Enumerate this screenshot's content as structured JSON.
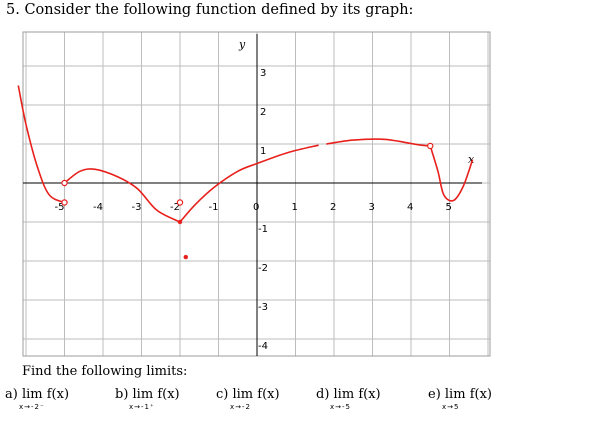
{
  "question": "5. Consider the following function defined by its graph:",
  "instruction": "Find the following limits:",
  "limits": [
    {
      "label": "a) lim",
      "fn": "f(x)",
      "approach": "x→-2⁻"
    },
    {
      "label": "b) lim",
      "fn": "f(x)",
      "approach": "x→-1⁺"
    },
    {
      "label": "c) lim",
      "fn": "f(x)",
      "approach": "x→-2"
    },
    {
      "label": "d) lim",
      "fn": "f(x)",
      "approach": "x→-5"
    },
    {
      "label": "e) lim",
      "fn": "f(x)",
      "approach": "x→5"
    }
  ],
  "chart_data": {
    "type": "line",
    "xlabel": "x",
    "ylabel": "y",
    "xlim": [
      -6.2,
      6.2
    ],
    "ylim": [
      -4.5,
      3.8
    ],
    "grid": true,
    "x_ticks": [
      "-5",
      "-4",
      "-3",
      "-2",
      "-1",
      "0",
      "1",
      "2",
      "3",
      "4",
      "5"
    ],
    "y_ticks_pos": [
      "1",
      "2",
      "3"
    ],
    "y_ticks_neg": [
      "-1",
      "-2",
      "-3",
      "-4"
    ],
    "curve_color": "#e8201c",
    "curves": [
      {
        "name": "",
        "points": [
          [
            -6.2,
            2.5
          ],
          [
            -6.0,
            1.5
          ],
          [
            -5.7,
            0.4
          ],
          [
            -5.4,
            -0.3
          ],
          [
            -5.0,
            -0.5
          ]
        ]
      },
      {
        "name": "",
        "points": [
          [
            -5.0,
            0.0
          ],
          [
            -4.6,
            0.3
          ],
          [
            -4.2,
            0.35
          ],
          [
            -3.6,
            0.15
          ],
          [
            -3.1,
            -0.15
          ],
          [
            -2.6,
            -0.7
          ],
          [
            -2.0,
            -1.0
          ]
        ]
      },
      {
        "name": "",
        "points": [
          [
            -2.0,
            -1.0
          ],
          [
            -1.6,
            -0.55
          ],
          [
            -1.1,
            -0.1
          ],
          [
            -0.5,
            0.3
          ],
          [
            0,
            0.5
          ],
          [
            0.8,
            0.78
          ],
          [
            1.6,
            0.97
          ]
        ]
      },
      {
        "name": "",
        "points": [
          [
            1.8,
            1.0
          ],
          [
            2.5,
            1.1
          ],
          [
            3.3,
            1.12
          ],
          [
            4.2,
            0.98
          ],
          [
            4.5,
            0.95
          ]
        ]
      },
      {
        "name": "",
        "points": [
          [
            4.5,
            0.95
          ],
          [
            4.7,
            0.3
          ],
          [
            4.85,
            -0.3
          ],
          [
            5.1,
            -0.45
          ],
          [
            5.35,
            -0.1
          ],
          [
            5.6,
            0.6
          ]
        ]
      }
    ],
    "open_points": [
      [
        -5.0,
        0.0
      ],
      [
        -5.0,
        -0.5
      ],
      [
        -2.0,
        -0.5
      ],
      [
        4.5,
        0.95
      ]
    ],
    "closed_points": [
      [
        -2.0,
        -1.0
      ],
      [
        -1.85,
        -1.9
      ]
    ]
  }
}
